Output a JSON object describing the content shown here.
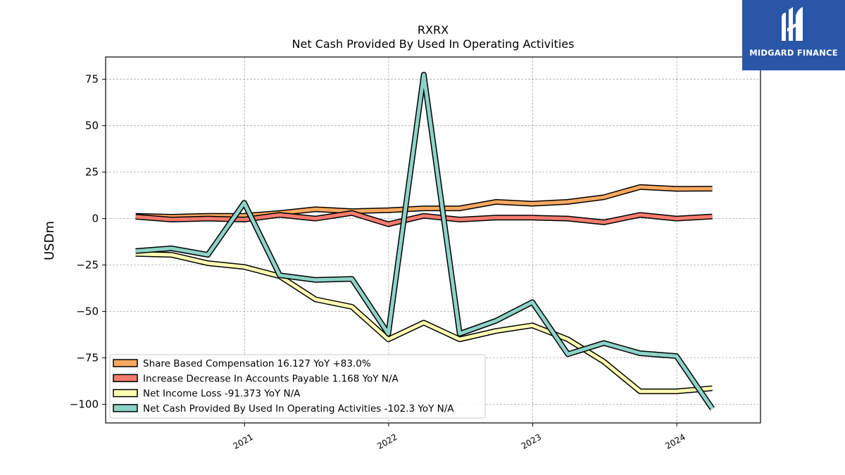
{
  "brand": {
    "name": "MIDGARD FINANCE",
    "bg_color": "#2a56a8"
  },
  "chart_data": {
    "type": "line",
    "title": "RXRX",
    "subtitle": "Net Cash Provided By Used In Operating Activities",
    "ylabel": "USDm",
    "xlabel": "",
    "ylim": [
      -110,
      87
    ],
    "xlim": [
      "2020-01-15",
      "2024-07-31"
    ],
    "yticks": [
      75,
      50,
      25,
      0,
      -25,
      -50,
      -75,
      -100
    ],
    "ytick_labels": [
      "75",
      "50",
      "25",
      "0",
      "−25",
      "−50",
      "−75",
      "−100"
    ],
    "xticks": [
      "2021-01-01",
      "2022-01-01",
      "2023-01-01",
      "2024-01-01"
    ],
    "xtick_labels": [
      "2021",
      "2022",
      "2023",
      "2024"
    ],
    "grid": true,
    "legend_position": "lower-left",
    "x": [
      "2020-03-31",
      "2020-06-30",
      "2020-09-30",
      "2020-12-31",
      "2021-03-31",
      "2021-06-30",
      "2021-09-30",
      "2021-12-31",
      "2022-03-31",
      "2022-06-30",
      "2022-09-30",
      "2022-12-31",
      "2023-03-31",
      "2023-06-30",
      "2023-09-30",
      "2023-12-31",
      "2024-03-31"
    ],
    "series": [
      {
        "name": "Share Based Compensation  16.127 YoY +83.0%",
        "color": "#fca95f",
        "values": [
          1.5,
          1.0,
          1.5,
          1.5,
          3.0,
          5.0,
          4.0,
          4.5,
          5.5,
          5.5,
          9.0,
          8.0,
          9.0,
          11.5,
          17.0,
          16.0,
          16.127
        ]
      },
      {
        "name": "Increase Decrease In Accounts Payable  1.168 YoY N/A",
        "color": "#f77c6e",
        "values": [
          1.0,
          -0.5,
          0.0,
          -0.5,
          2.0,
          0.0,
          3.0,
          -3.0,
          1.5,
          -0.5,
          0.5,
          0.5,
          0.0,
          -2.0,
          2.0,
          0.0,
          1.168
        ]
      },
      {
        "name": "Net Income Loss  -91.373 YoY N/A",
        "color": "#ffffb3",
        "values": [
          -19.0,
          -19.5,
          -24.0,
          -26.0,
          -31.0,
          -43.5,
          -47.5,
          -65.0,
          -56.0,
          -65.0,
          -60.5,
          -57.5,
          -65.0,
          -77.0,
          -93.0,
          -93.0,
          -91.373
        ]
      },
      {
        "name": "Net Cash Provided By Used In Operating Activities  -102.3 YoY N/A",
        "color": "#8dd3c7",
        "values": [
          -17.5,
          -16.0,
          -19.5,
          8.5,
          -30.5,
          -33.0,
          -32.5,
          -62.0,
          77.5,
          -62.0,
          -55.0,
          -45.0,
          -73.0,
          -67.0,
          -72.5,
          -74.0,
          -102.3
        ]
      }
    ]
  }
}
